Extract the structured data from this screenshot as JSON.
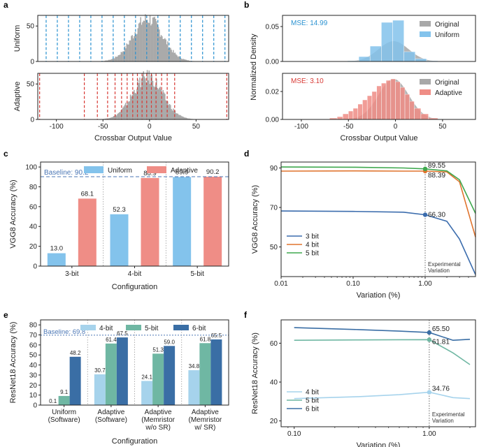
{
  "colors": {
    "grey": "#a8a8a8",
    "uniform_blue": "#2b92d1",
    "uniform_bar": "#83c3ec",
    "adaptive_red": "#d83a35",
    "adaptive_bar": "#ef8d86",
    "baseline": "#4a76b5",
    "line_3bit": "#3b6cad",
    "line_4bit": "#e0742e",
    "line_5bit": "#3fa84e",
    "rn_4bit": "#a6d3ec",
    "rn_5bit": "#6fb7a3",
    "rn_6bit": "#3a6ea5",
    "dotted": "#666666"
  },
  "panel_labels": {
    "a": "a",
    "b": "b",
    "c": "c",
    "d": "d",
    "e": "e",
    "f": "f"
  },
  "chart_data": [
    {
      "panel": "a",
      "type": "area",
      "subplots": [
        {
          "ylabel": "Uniform",
          "xlim": [
            -120,
            85
          ],
          "ylim": [
            0,
            65
          ],
          "yticks": [
            0,
            50
          ],
          "hist_center": -2,
          "hist_sigma": 16,
          "hist_peak": 60,
          "thresholds": [
            -111,
            -99,
            -87,
            -75,
            -63,
            -51,
            -39,
            -27,
            -15,
            -3,
            9,
            21,
            33,
            45,
            57,
            69,
            81
          ],
          "threshold_color": "uniform_blue"
        },
        {
          "ylabel": "Adaptive",
          "xlim": [
            -120,
            85
          ],
          "ylim": [
            0,
            65
          ],
          "yticks": [
            0,
            50
          ],
          "hist_center": -2,
          "hist_sigma": 16,
          "hist_peak": 60,
          "thresholds": [
            -118,
            -70,
            -56,
            -45,
            -37,
            -30,
            -24,
            -18,
            -13,
            -8,
            -3,
            2,
            7,
            13,
            19,
            27,
            83
          ],
          "threshold_color": "adaptive_red"
        }
      ],
      "xlabel": "Crossbar Output Value",
      "xticks": [
        -100,
        -50,
        0,
        50
      ]
    },
    {
      "panel": "b",
      "type": "bar",
      "ylabel": "Normalized Density",
      "xlabel": "Crossbar Output Value",
      "xlim": [
        -120,
        85
      ],
      "xticks": [
        -100,
        -50,
        0,
        50
      ],
      "subplots": [
        {
          "annotation": "MSE: 14.99",
          "legend": [
            "Original",
            "Uniform"
          ],
          "ylim": [
            0,
            0.066
          ],
          "yticks": [
            0.0,
            0.05
          ],
          "ytick_labels": [
            "0.00",
            "0.05"
          ],
          "original": {
            "center": -2,
            "sigma": 16,
            "peak": 0.029
          },
          "bars": [
            {
              "x0": -51,
              "x1": -39,
              "value": 0.001
            },
            {
              "x0": -39,
              "x1": -27,
              "value": 0.007
            },
            {
              "x0": -27,
              "x1": -15,
              "value": 0.022
            },
            {
              "x0": -15,
              "x1": -3,
              "value": 0.056
            },
            {
              "x0": -3,
              "x1": 9,
              "value": 0.059
            },
            {
              "x0": 9,
              "x1": 21,
              "value": 0.014
            },
            {
              "x0": 21,
              "x1": 33,
              "value": 0.004
            },
            {
              "x0": 33,
              "x1": 45,
              "value": 0.001
            }
          ]
        },
        {
          "annotation": "MSE: 3.10",
          "legend": [
            "Original",
            "Adaptive"
          ],
          "ylim": [
            0,
            0.033
          ],
          "yticks": [
            0.0,
            0.02
          ],
          "ytick_labels": [
            "0.00",
            "0.02"
          ],
          "original": {
            "center": -2,
            "sigma": 16,
            "peak": 0.029
          },
          "bars": [
            {
              "x0": -70,
              "x1": -62,
              "value": 0.001
            },
            {
              "x0": -62,
              "x1": -56,
              "value": 0.002
            },
            {
              "x0": -56,
              "x1": -50,
              "value": 0.004
            },
            {
              "x0": -50,
              "x1": -45,
              "value": 0.006
            },
            {
              "x0": -45,
              "x1": -40,
              "value": 0.008
            },
            {
              "x0": -40,
              "x1": -35,
              "value": 0.011
            },
            {
              "x0": -35,
              "x1": -30,
              "value": 0.014
            },
            {
              "x0": -30,
              "x1": -25,
              "value": 0.017
            },
            {
              "x0": -25,
              "x1": -20,
              "value": 0.02
            },
            {
              "x0": -20,
              "x1": -15,
              "value": 0.024
            },
            {
              "x0": -15,
              "x1": -10,
              "value": 0.026
            },
            {
              "x0": -10,
              "x1": -5,
              "value": 0.028
            },
            {
              "x0": -5,
              "x1": 0,
              "value": 0.029
            },
            {
              "x0": 0,
              "x1": 5,
              "value": 0.027
            },
            {
              "x0": 5,
              "x1": 10,
              "value": 0.023
            },
            {
              "x0": 10,
              "x1": 15,
              "value": 0.018
            },
            {
              "x0": 15,
              "x1": 20,
              "value": 0.013
            },
            {
              "x0": 20,
              "x1": 27,
              "value": 0.008
            },
            {
              "x0": 27,
              "x1": 35,
              "value": 0.004
            },
            {
              "x0": 35,
              "x1": 45,
              "value": 0.001
            }
          ]
        }
      ]
    },
    {
      "panel": "c",
      "type": "bar",
      "ylabel": "VGG8 Accuracy (%)",
      "xlabel": "Configuration",
      "categories": [
        "3-bit",
        "4-bit",
        "5-bit"
      ],
      "ylim": [
        0,
        105
      ],
      "yticks": [
        0,
        20,
        40,
        60,
        80,
        100
      ],
      "baseline": {
        "value": 90.2,
        "label": "Baseline: 90.2"
      },
      "series": [
        {
          "name": "Uniform",
          "color": "uniform_bar",
          "values": [
            13.0,
            52.3,
            89.9
          ],
          "labels": [
            "13.0",
            "52.3",
            "89.9"
          ]
        },
        {
          "name": "Adaptive",
          "color": "adaptive_bar",
          "values": [
            68.1,
            88.9,
            90.2
          ],
          "labels": [
            "68.1",
            "88.9",
            "90.2"
          ]
        }
      ]
    },
    {
      "panel": "d",
      "type": "line",
      "ylabel": "VGG8 Accuracy (%)",
      "xlabel": "Variation (%)",
      "xscale": "log",
      "xlim": [
        0.01,
        5
      ],
      "xticks": [
        0.01,
        0.1,
        1.0
      ],
      "xtick_labels": [
        "0.01",
        "0.10",
        "1.00"
      ],
      "ylim": [
        35,
        93
      ],
      "yticks": [
        50,
        70,
        90
      ],
      "vline": {
        "x": 1.0,
        "label": "Experimental Variation"
      },
      "series": [
        {
          "name": "3 bit",
          "color": "line_3bit",
          "x": [
            0.01,
            0.1,
            0.5,
            1.0,
            2.0,
            3.0,
            5.0
          ],
          "values": [
            68.2,
            68.0,
            67.6,
            66.3,
            63.0,
            54.0,
            36.0
          ]
        },
        {
          "name": "4 bit",
          "color": "line_4bit",
          "x": [
            0.01,
            0.1,
            0.5,
            1.0,
            2.0,
            3.0,
            5.0
          ],
          "values": [
            88.4,
            88.5,
            88.4,
            88.39,
            88.0,
            83.0,
            55.0
          ]
        },
        {
          "name": "5 bit",
          "color": "line_5bit",
          "x": [
            0.01,
            0.1,
            0.5,
            1.0,
            2.0,
            3.0,
            5.0
          ],
          "values": [
            90.5,
            90.4,
            90.0,
            89.55,
            88.5,
            84.0,
            67.0
          ]
        }
      ],
      "point_labels": [
        {
          "x": 1.0,
          "y": 89.55,
          "text": "89.55"
        },
        {
          "x": 1.0,
          "y": 88.39,
          "text": "88.39"
        },
        {
          "x": 1.0,
          "y": 66.3,
          "text": "66.30"
        }
      ]
    },
    {
      "panel": "e",
      "type": "bar",
      "ylabel": "ResNet18 Accuracy (%)",
      "xlabel": "Configuration",
      "categories": [
        [
          "Uniform",
          "(Software)"
        ],
        [
          "Adaptive",
          "(Software)"
        ],
        [
          "Adaptive",
          "(Memristor",
          "w/o SR)"
        ],
        [
          "Adaptive",
          "(Memristor",
          "w/ SR)"
        ]
      ],
      "ylim": [
        0,
        85
      ],
      "yticks": [
        0,
        10,
        20,
        30,
        40,
        50,
        60,
        70,
        80
      ],
      "baseline": {
        "value": 69.8,
        "label": "Baseline: 69.8"
      },
      "series": [
        {
          "name": "4-bit",
          "color": "rn_4bit",
          "values": [
            0.1,
            30.7,
            24.1,
            34.8
          ],
          "labels": [
            "0.1",
            "30.7",
            "24.1",
            "34.8"
          ]
        },
        {
          "name": "5-bit",
          "color": "rn_5bit",
          "values": [
            9.1,
            61.4,
            51.3,
            61.8
          ],
          "labels": [
            "9.1",
            "61.4",
            "51.3",
            "61.8"
          ]
        },
        {
          "name": "6-bit",
          "color": "rn_6bit",
          "values": [
            48.2,
            67.5,
            59.0,
            65.5
          ],
          "labels": [
            "48.2",
            "67.5",
            "59.0",
            "65.5"
          ]
        }
      ]
    },
    {
      "panel": "f",
      "type": "line",
      "ylabel": "ResNet18 Accuracy (%)",
      "xlabel": "Variation (%)",
      "xscale": "log",
      "xlim": [
        0.08,
        2.2
      ],
      "xticks": [
        0.1,
        1.0
      ],
      "xtick_labels": [
        "0.10",
        "1.00"
      ],
      "ylim": [
        17,
        72
      ],
      "yticks": [
        20,
        40,
        60
      ],
      "vline": {
        "x": 1.0,
        "label": "Experimental Variation"
      },
      "series": [
        {
          "name": "4 bit",
          "color": "rn_4bit",
          "x": [
            0.1,
            0.3,
            0.6,
            1.0,
            1.5,
            2.0
          ],
          "values": [
            31.5,
            32.5,
            33.5,
            34.76,
            32.0,
            31.5
          ]
        },
        {
          "name": "5 bit",
          "color": "rn_5bit",
          "x": [
            0.1,
            0.3,
            0.6,
            1.0,
            1.5,
            2.0
          ],
          "values": [
            61.5,
            61.7,
            61.8,
            61.81,
            55.0,
            49.0
          ]
        },
        {
          "name": "6 bit",
          "color": "rn_6bit",
          "x": [
            0.1,
            0.3,
            0.6,
            1.0,
            1.5,
            2.0
          ],
          "values": [
            68.0,
            67.0,
            66.2,
            65.5,
            61.5,
            62.0
          ]
        }
      ],
      "point_labels": [
        {
          "x": 1.0,
          "y": 65.5,
          "text": "65.50"
        },
        {
          "x": 1.0,
          "y": 61.81,
          "text": "61.81"
        },
        {
          "x": 1.0,
          "y": 34.76,
          "text": "34.76"
        }
      ]
    }
  ]
}
